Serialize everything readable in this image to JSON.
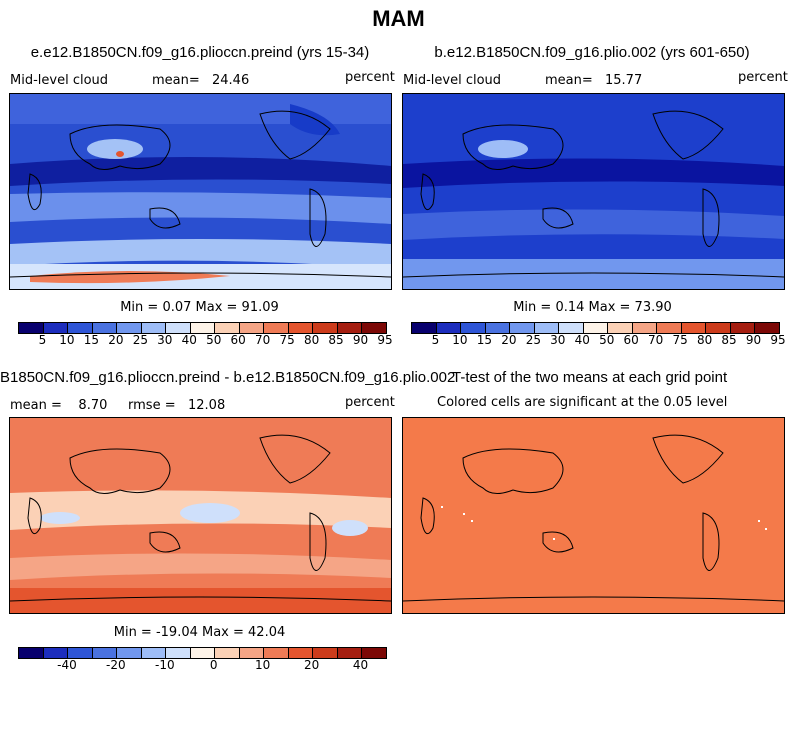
{
  "header": {
    "title": "MAM"
  },
  "panels": {
    "p1": {
      "title": "e.e12.B1850CN.f09_g16.plioccn.preind (yrs 15-34)",
      "var": "Mid-level cloud",
      "mean_label": "mean=",
      "mean_value": "24.46",
      "units": "percent",
      "minmax": "Min =   0.07 Max =  91.09"
    },
    "p2": {
      "title": "b.e12.B1850CN.f09_g16.plio.002 (yrs 601-650)",
      "var": "Mid-level cloud",
      "mean_label": "mean=",
      "mean_value": "15.77",
      "units": "percent",
      "minmax": "Min =   0.14 Max =  73.90"
    },
    "p3": {
      "title": "B1850CN.f09_g16.plioccn.preind - b.e12.B1850CN.f09_g16.plio.002",
      "stats": "mean =    8.70     rmse =   12.08",
      "units": "percent",
      "minmax": "Min = -19.04 Max =  42.04"
    },
    "p4": {
      "title": "T-test of the two means at each grid point",
      "subtitle": "Colored cells are significant at the 0.05 level"
    }
  },
  "colorbar_abs": {
    "colors": [
      "#08006e",
      "#1c2dbd",
      "#2e55d6",
      "#4a72e0",
      "#7197ee",
      "#9ebdf7",
      "#cfe0fb",
      "#fdf3e8",
      "#fbd1b6",
      "#f5a586",
      "#ef7b56",
      "#e4552e",
      "#cc3b1b",
      "#a51e10",
      "#7c0806"
    ],
    "labels": [
      "5",
      "10",
      "15",
      "20",
      "25",
      "30",
      "40",
      "50",
      "60",
      "70",
      "75",
      "80",
      "85",
      "90",
      "95"
    ]
  },
  "colorbar_diff": {
    "colors": [
      "#08006e",
      "#1c2dbd",
      "#2e55d6",
      "#4a72e0",
      "#7197ee",
      "#9ebdf7",
      "#cfe0fb",
      "#fdf3e8",
      "#fbd1b6",
      "#f5a586",
      "#ef7b56",
      "#e4552e",
      "#cc3b1b",
      "#a51e10",
      "#7c0806"
    ],
    "labels": [
      "-40",
      "-20",
      "-10",
      "0",
      "10",
      "20",
      "40"
    ]
  },
  "map_colors": {
    "p1_base": "#2a4fd0",
    "p2_base": "#1d3fcc",
    "p3_base": "#ef7b56",
    "p4_base": "#f47a4a"
  }
}
